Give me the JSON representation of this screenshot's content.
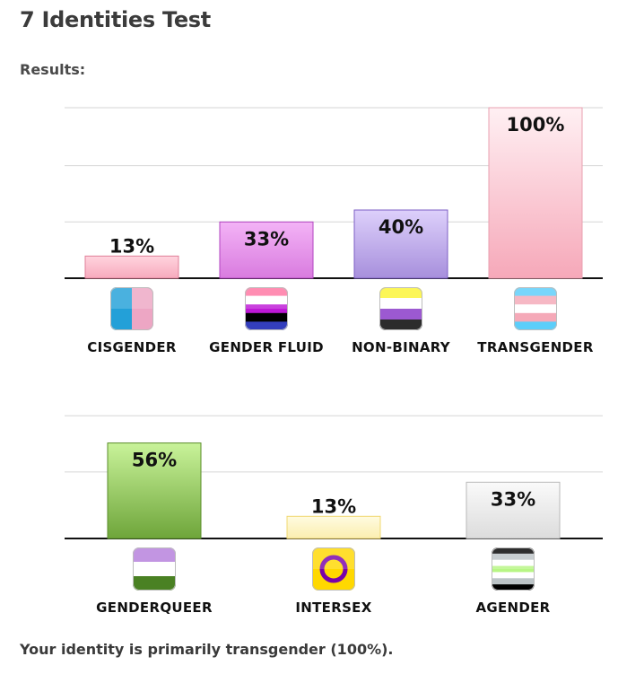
{
  "title": "7 Identities Test",
  "subtitle": "Results:",
  "summary": "Your identity is primarily transgender (100%).",
  "colors": {
    "cisgender": "#f9b4c6",
    "gender_fluid": "#e38bea",
    "non_binary": "#b29ee6",
    "transgender": "#f9b4c3",
    "genderqueer": "#7fb542",
    "intersex": "#fdf3c2",
    "agender": "#e7e7e7"
  },
  "chart_data": [
    {
      "type": "bar",
      "categories": [
        "CISGENDER",
        "GENDER FLUID",
        "NON-BINARY",
        "TRANSGENDER"
      ],
      "values": [
        13,
        33,
        40,
        100
      ],
      "value_labels": [
        "13%",
        "33%",
        "40%",
        "100%"
      ],
      "icons": [
        "cisgender-flag-icon",
        "gender-fluid-flag-icon",
        "non-binary-flag-icon",
        "transgender-flag-icon"
      ],
      "ylim": [
        0,
        100
      ],
      "grid": true
    },
    {
      "type": "bar",
      "categories": [
        "GENDERQUEER",
        "INTERSEX",
        "AGENDER"
      ],
      "values": [
        56,
        13,
        33
      ],
      "value_labels": [
        "56%",
        "13%",
        "33%"
      ],
      "icons": [
        "genderqueer-flag-icon",
        "intersex-flag-icon",
        "agender-flag-icon"
      ],
      "ylim": [
        0,
        100
      ],
      "grid": true
    }
  ]
}
